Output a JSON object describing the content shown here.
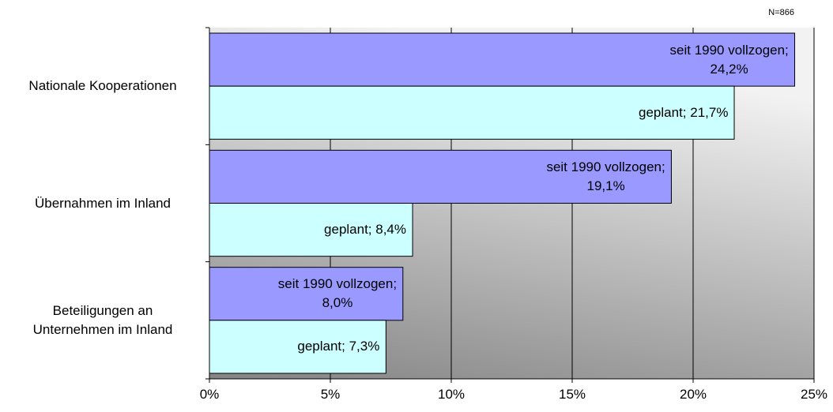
{
  "chart_data": {
    "type": "barh",
    "note": "N=866",
    "categories": [
      "Nationale Kooperationen",
      "Übernahmen im Inland",
      "Beteiligungen an\nUnternehmen im Inland"
    ],
    "series": [
      {
        "color": "#9999ff",
        "values": [
          24.2,
          19.1,
          8.0
        ],
        "value_labels": [
          "seit 1990 vollzogen;\n24,2%",
          "seit 1990 vollzogen;\n19,1%",
          "seit 1990 vollzogen;\n8,0%"
        ]
      },
      {
        "color": "#ccffff",
        "values": [
          21.7,
          8.4,
          7.3
        ],
        "value_labels": [
          "geplant; 21,7%",
          "geplant; 8,4%",
          "geplant; 7,3%"
        ]
      }
    ],
    "xlim": [
      0,
      25
    ],
    "xticks": [
      {
        "value": 0,
        "label": "0%"
      },
      {
        "value": 5,
        "label": "5%"
      },
      {
        "value": 10,
        "label": "10%"
      },
      {
        "value": 15,
        "label": "15%"
      },
      {
        "value": 20,
        "label": "20%"
      },
      {
        "value": 25,
        "label": "25%"
      }
    ],
    "grid": true
  }
}
